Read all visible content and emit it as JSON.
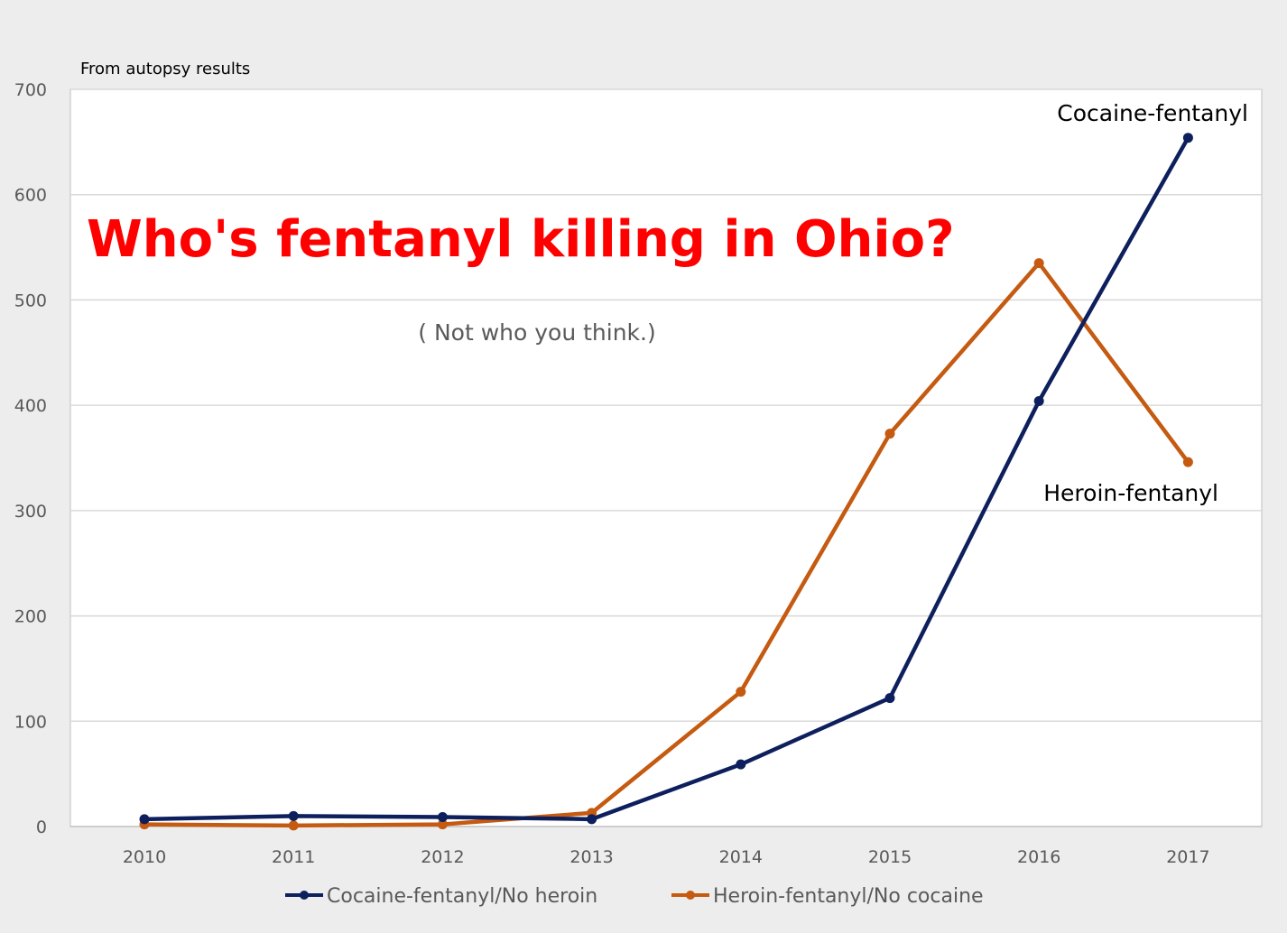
{
  "colors": {
    "background": "#ededed",
    "plot_background": "#ffffff",
    "title": "#ff0000",
    "cocaine_series": "#0d1f5c",
    "heroin_series": "#c55a11"
  },
  "chart_data": {
    "type": "line",
    "title": "Who's fentanyl killing in Ohio?",
    "subtitle": "( Not who you think.)",
    "note": "From autopsy results",
    "x": [
      "2010",
      "2011",
      "2012",
      "2013",
      "2014",
      "2015",
      "2016",
      "2017"
    ],
    "ylim": [
      0,
      700
    ],
    "yticks": [
      0,
      100,
      200,
      300,
      400,
      500,
      600,
      700
    ],
    "grid": true,
    "legend_position": "bottom",
    "series": [
      {
        "name": "Cocaine-fentanyl/No heroin",
        "values": [
          7,
          10,
          9,
          7,
          59,
          122,
          404,
          654
        ]
      },
      {
        "name": "Heroin-fentanyl/No cocaine",
        "values": [
          2,
          1,
          2,
          13,
          128,
          373,
          535,
          346
        ]
      }
    ],
    "annotations": [
      {
        "text": "Cocaine-fentanyl",
        "series": 0,
        "x": "2017"
      },
      {
        "text": "Heroin-fentanyl",
        "series": 1,
        "x": "2017"
      }
    ]
  }
}
